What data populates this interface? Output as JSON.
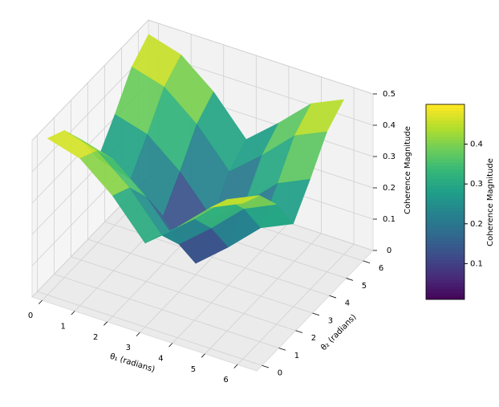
{
  "chart_data": {
    "type": "surface3d",
    "xlabel": "θ₁ (radians)",
    "ylabel": "θ₂ (radians)",
    "zlabel": "Coherence Magnitude",
    "colorbar_label": "Coherence Magnitude",
    "x": [
      0,
      1,
      2,
      3,
      4,
      5,
      6
    ],
    "y": [
      0,
      1,
      2,
      3,
      4,
      5,
      6
    ],
    "z": [
      [
        0.5,
        0.47,
        0.385,
        0.268,
        0.354,
        0.45,
        0.498
      ],
      [
        0.47,
        0.439,
        0.355,
        0.237,
        0.324,
        0.42,
        0.467
      ],
      [
        0.385,
        0.355,
        0.27,
        0.153,
        0.239,
        0.335,
        0.383
      ],
      [
        0.268,
        0.237,
        0.153,
        0.036,
        0.122,
        0.218,
        0.265
      ],
      [
        0.354,
        0.324,
        0.239,
        0.122,
        0.208,
        0.304,
        0.352
      ],
      [
        0.45,
        0.42,
        0.335,
        0.218,
        0.304,
        0.401,
        0.448
      ],
      [
        0.498,
        0.467,
        0.383,
        0.265,
        0.352,
        0.448,
        0.495
      ]
    ],
    "xlim": [
      -0.31,
      6.59
    ],
    "ylim": [
      -0.31,
      6.59
    ],
    "zlim": [
      0,
      0.5
    ],
    "xticks": [
      0,
      1,
      2,
      3,
      4,
      5,
      6
    ],
    "yticks": [
      0,
      1,
      2,
      3,
      4,
      5,
      6
    ],
    "zticks": [
      0.0,
      0.1,
      0.2,
      0.3,
      0.4,
      0.5
    ],
    "clim": [
      0.01,
      0.5
    ],
    "cticks": [
      0.1,
      0.2,
      0.3,
      0.4
    ],
    "colormap": "viridis",
    "grid": true
  }
}
